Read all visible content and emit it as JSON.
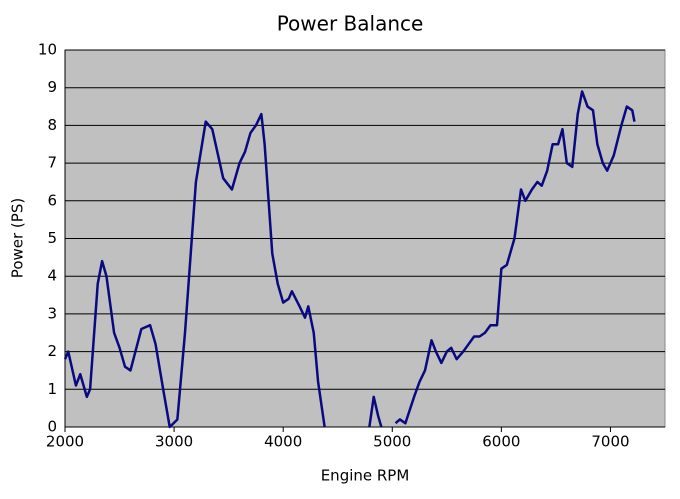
{
  "chart_data": {
    "type": "line",
    "title": "Power Balance",
    "x_label": "Engine RPM",
    "y_label": "Power (PS)",
    "x": [
      2000,
      2030,
      2100,
      2140,
      2200,
      2230,
      2300,
      2340,
      2380,
      2450,
      2500,
      2550,
      2600,
      2700,
      2780,
      2830,
      2900,
      2960,
      3030,
      3100,
      3200,
      3290,
      3350,
      3450,
      3530,
      3600,
      3650,
      3700,
      3750,
      3800,
      3830,
      3900,
      3950,
      4000,
      4050,
      4080,
      4150,
      4200,
      4230,
      4280,
      4320,
      4380,
      4600,
      4790,
      4830,
      4870,
      4900,
      4960,
      5030,
      5070,
      5120,
      5200,
      5250,
      5300,
      5360,
      5400,
      5450,
      5500,
      5540,
      5590,
      5650,
      5700,
      5750,
      5800,
      5850,
      5900,
      5960,
      6000,
      6050,
      6120,
      6180,
      6220,
      6280,
      6330,
      6370,
      6420,
      6470,
      6520,
      6560,
      6600,
      6650,
      6700,
      6740,
      6790,
      6840,
      6880,
      6930,
      6970,
      7030,
      7100,
      7150,
      7200,
      7220
    ],
    "series": [
      {
        "name": "Power",
        "color": "#0a0a80",
        "values": [
          1.8,
          2.0,
          1.1,
          1.4,
          0.8,
          1.0,
          3.8,
          4.4,
          4.0,
          2.5,
          2.1,
          1.6,
          1.5,
          2.6,
          2.7,
          2.2,
          1.0,
          0,
          0.2,
          2.5,
          6.5,
          8.1,
          7.9,
          6.6,
          6.3,
          7.0,
          7.3,
          7.8,
          8.0,
          8.3,
          7.5,
          4.6,
          3.8,
          3.3,
          3.4,
          3.6,
          3.2,
          2.9,
          3.2,
          2.5,
          1.2,
          0,
          null,
          0,
          0.8,
          0.3,
          0,
          null,
          0.1,
          0.2,
          0.1,
          0.8,
          1.2,
          1.5,
          2.3,
          2.0,
          1.7,
          2.0,
          2.1,
          1.8,
          2.0,
          2.2,
          2.4,
          2.4,
          2.5,
          2.7,
          2.7,
          4.2,
          4.3,
          5.0,
          6.3,
          6.0,
          6.3,
          6.5,
          6.4,
          6.8,
          7.5,
          7.5,
          7.9,
          7.0,
          6.9,
          8.3,
          8.9,
          8.5,
          8.4,
          7.5,
          7.0,
          6.8,
          7.2,
          8.0,
          8.5,
          8.4,
          8.1
        ]
      }
    ],
    "xlim": [
      2000,
      7500
    ],
    "xticks": [
      2000,
      3000,
      4000,
      5000,
      6000,
      7000
    ],
    "ylim": [
      0,
      10
    ],
    "yticks": [
      0,
      1,
      2,
      3,
      4,
      5,
      6,
      7,
      8,
      9,
      10
    ],
    "grid": true
  }
}
